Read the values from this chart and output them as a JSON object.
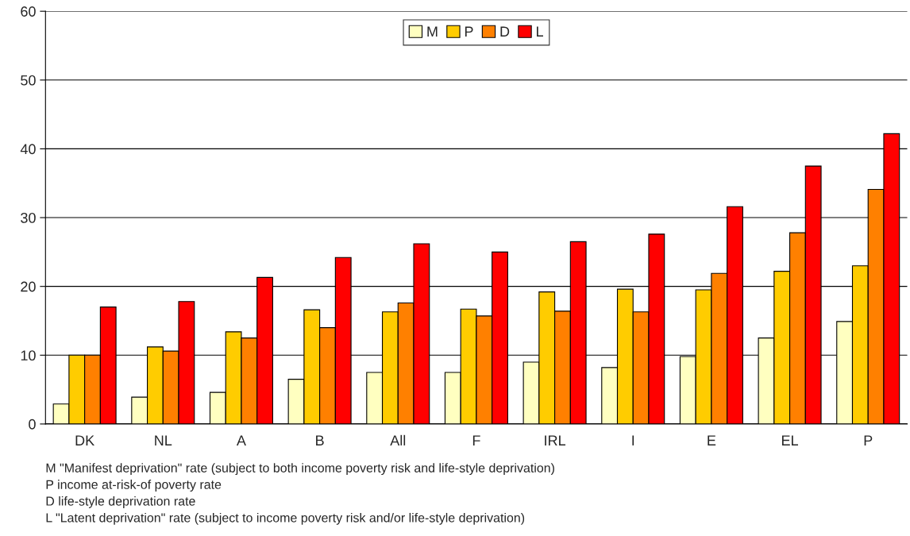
{
  "chart_data": {
    "type": "bar",
    "categories": [
      "DK",
      "NL",
      "A",
      "B",
      "All",
      "F",
      "IRL",
      "I",
      "E",
      "EL",
      "P"
    ],
    "series": [
      {
        "name": "M",
        "color": "#ffffc0",
        "values": [
          2.9,
          3.9,
          4.6,
          6.5,
          7.5,
          7.5,
          9.0,
          8.2,
          9.8,
          12.5,
          14.9
        ]
      },
      {
        "name": "P",
        "color": "#ffcc00",
        "values": [
          10.0,
          11.2,
          13.4,
          16.6,
          16.3,
          16.7,
          19.2,
          19.6,
          19.5,
          22.2,
          23.0
        ]
      },
      {
        "name": "D",
        "color": "#ff8000",
        "values": [
          10.0,
          10.6,
          12.5,
          14.0,
          17.6,
          15.7,
          16.4,
          16.3,
          21.9,
          27.8,
          34.1
        ]
      },
      {
        "name": "L",
        "color": "#ff0000",
        "values": [
          17.0,
          17.8,
          21.3,
          24.2,
          26.2,
          25.0,
          26.5,
          27.6,
          31.6,
          37.5,
          42.2
        ]
      }
    ],
    "ylim": [
      0,
      60
    ],
    "yticks": [
      0,
      10,
      20,
      30,
      40,
      50,
      60
    ],
    "grid": "y",
    "legend": "top",
    "annotations": [
      "M \"Manifest deprivation\" rate (subject to both income poverty risk and life-style deprivation)",
      "P income at-risk-of poverty rate",
      "D life-style deprivation rate",
      "L \"Latent deprivation\" rate (subject to income poverty risk and/or life-style deprivation)"
    ]
  }
}
